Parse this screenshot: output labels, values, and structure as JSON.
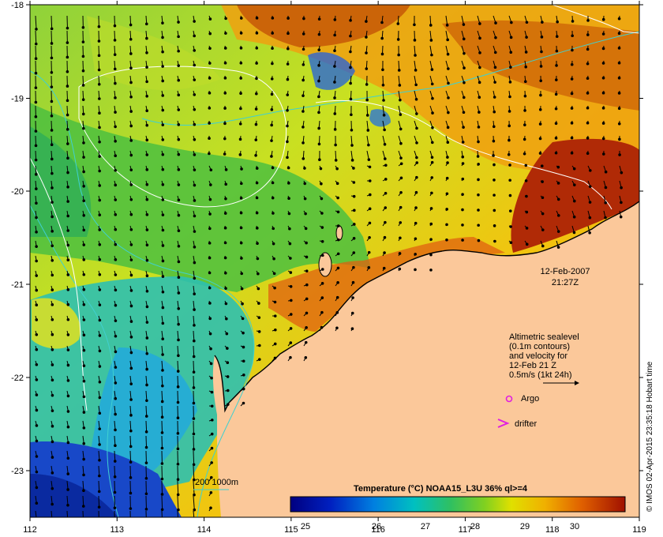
{
  "map": {
    "date": "12-Feb-2007",
    "time": "21:27Z",
    "lon_ticks": [
      "112",
      "113",
      "114",
      "115",
      "116",
      "117",
      "118",
      "119"
    ],
    "lat_ticks": [
      "-18",
      "-19",
      "-20",
      "-21",
      "-22",
      "-23"
    ],
    "legend_lines": [
      "Altimetric sealevel",
      "(0.1m contours)",
      "and velocity for",
      "12-Feb 21 Z",
      "0.5m/s (1kt 24h)"
    ],
    "argo_label": "Argo",
    "drifter_label": "drifter",
    "isobath_label": "200  1000m",
    "colorbar_title": "Temperature (°C) NOAA15_L3U 36% ql>=4",
    "colorbar_ticks": [
      "25",
      "26",
      "27",
      "28",
      "29",
      "30"
    ],
    "credit": "© IMOS 02-Apr-2015 23:35:18 Hobart time",
    "colors": {
      "land": "#fbc89a",
      "isobath": "#40d0d0",
      "argo": "#e020e0",
      "drifter": "#e020e0"
    }
  }
}
